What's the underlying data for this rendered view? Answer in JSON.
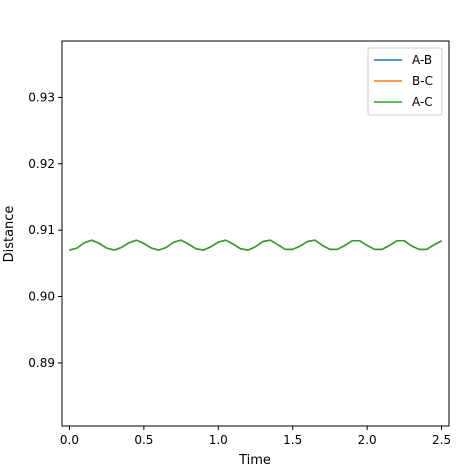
{
  "chart_data": {
    "type": "line",
    "title": "",
    "xlabel": "Time",
    "ylabel": "Distance",
    "xlim": [
      -0.05,
      2.55
    ],
    "ylim": [
      0.8805,
      0.9385
    ],
    "xticks": [
      0.0,
      0.5,
      1.0,
      1.5,
      2.0,
      2.5
    ],
    "xtick_labels": [
      "0.0",
      "0.5",
      "1.0",
      "1.5",
      "2.0",
      "2.5"
    ],
    "yticks": [
      0.89,
      0.9,
      0.91,
      0.92,
      0.93
    ],
    "ytick_labels": [
      "0.89",
      "0.90",
      "0.91",
      "0.92",
      "0.93"
    ],
    "grid": false,
    "legend": {
      "position": "top-right"
    },
    "series": [
      {
        "name": "A-B",
        "color": "#1f77b4",
        "x": [
          0.0,
          0.05,
          0.1,
          0.15,
          0.2,
          0.25,
          0.3,
          0.35,
          0.4,
          0.45,
          0.5,
          0.55,
          0.6,
          0.65,
          0.7,
          0.75,
          0.8,
          0.85,
          0.9,
          0.95,
          1.0,
          1.05,
          1.1,
          1.15,
          1.2,
          1.25,
          1.3,
          1.35,
          1.4,
          1.45,
          1.5,
          1.55,
          1.6,
          1.65,
          1.7,
          1.75,
          1.8,
          1.85,
          1.9,
          1.95,
          2.0,
          2.05,
          2.1,
          2.15,
          2.2,
          2.25,
          2.3,
          2.35,
          2.4,
          2.45,
          2.5
        ],
        "y": [
          0.907,
          0.9073,
          0.9081,
          0.9085,
          0.908,
          0.9073,
          0.907,
          0.9074,
          0.9081,
          0.9085,
          0.908,
          0.9073,
          0.907,
          0.9074,
          0.9082,
          0.9085,
          0.9079,
          0.9072,
          0.907,
          0.9075,
          0.9082,
          0.9085,
          0.9079,
          0.9072,
          0.907,
          0.9075,
          0.9083,
          0.9085,
          0.9078,
          0.9071,
          0.9071,
          0.9076,
          0.9083,
          0.9085,
          0.9077,
          0.9071,
          0.9071,
          0.9077,
          0.9084,
          0.9084,
          0.9077,
          0.9071,
          0.9071,
          0.9077,
          0.9084,
          0.9084,
          0.9076,
          0.9071,
          0.9071,
          0.9078,
          0.9084
        ]
      },
      {
        "name": "B-C",
        "color": "#ff7f0e",
        "x": [
          0.0,
          0.05,
          0.1,
          0.15,
          0.2,
          0.25,
          0.3,
          0.35,
          0.4,
          0.45,
          0.5,
          0.55,
          0.6,
          0.65,
          0.7,
          0.75,
          0.8,
          0.85,
          0.9,
          0.95,
          1.0,
          1.05,
          1.1,
          1.15,
          1.2,
          1.25,
          1.3,
          1.35,
          1.4,
          1.45,
          1.5,
          1.55,
          1.6,
          1.65,
          1.7,
          1.75,
          1.8,
          1.85,
          1.9,
          1.95,
          2.0,
          2.05,
          2.1,
          2.15,
          2.2,
          2.25,
          2.3,
          2.35,
          2.4,
          2.45,
          2.5
        ],
        "y": [
          0.907,
          0.9073,
          0.9081,
          0.9085,
          0.908,
          0.9073,
          0.907,
          0.9074,
          0.9081,
          0.9085,
          0.908,
          0.9073,
          0.907,
          0.9074,
          0.9082,
          0.9085,
          0.9079,
          0.9072,
          0.907,
          0.9075,
          0.9082,
          0.9085,
          0.9079,
          0.9072,
          0.907,
          0.9075,
          0.9083,
          0.9085,
          0.9078,
          0.9071,
          0.9071,
          0.9076,
          0.9083,
          0.9085,
          0.9077,
          0.9071,
          0.9071,
          0.9077,
          0.9084,
          0.9084,
          0.9077,
          0.9071,
          0.9071,
          0.9077,
          0.9084,
          0.9084,
          0.9076,
          0.9071,
          0.9071,
          0.9078,
          0.9084
        ]
      },
      {
        "name": "A-C",
        "color": "#2ca02c",
        "x": [
          0.0,
          0.05,
          0.1,
          0.15,
          0.2,
          0.25,
          0.3,
          0.35,
          0.4,
          0.45,
          0.5,
          0.55,
          0.6,
          0.65,
          0.7,
          0.75,
          0.8,
          0.85,
          0.9,
          0.95,
          1.0,
          1.05,
          1.1,
          1.15,
          1.2,
          1.25,
          1.3,
          1.35,
          1.4,
          1.45,
          1.5,
          1.55,
          1.6,
          1.65,
          1.7,
          1.75,
          1.8,
          1.85,
          1.9,
          1.95,
          2.0,
          2.05,
          2.1,
          2.15,
          2.2,
          2.25,
          2.3,
          2.35,
          2.4,
          2.45,
          2.5
        ],
        "y": [
          0.907,
          0.9073,
          0.9081,
          0.9085,
          0.908,
          0.9073,
          0.907,
          0.9074,
          0.9081,
          0.9085,
          0.908,
          0.9073,
          0.907,
          0.9074,
          0.9082,
          0.9085,
          0.9079,
          0.9072,
          0.907,
          0.9075,
          0.9082,
          0.9085,
          0.9079,
          0.9072,
          0.907,
          0.9075,
          0.9083,
          0.9085,
          0.9078,
          0.9071,
          0.9071,
          0.9076,
          0.9083,
          0.9085,
          0.9077,
          0.9071,
          0.9071,
          0.9077,
          0.9084,
          0.9084,
          0.9077,
          0.9071,
          0.9071,
          0.9077,
          0.9084,
          0.9084,
          0.9076,
          0.9071,
          0.9071,
          0.9078,
          0.9084
        ]
      }
    ]
  }
}
